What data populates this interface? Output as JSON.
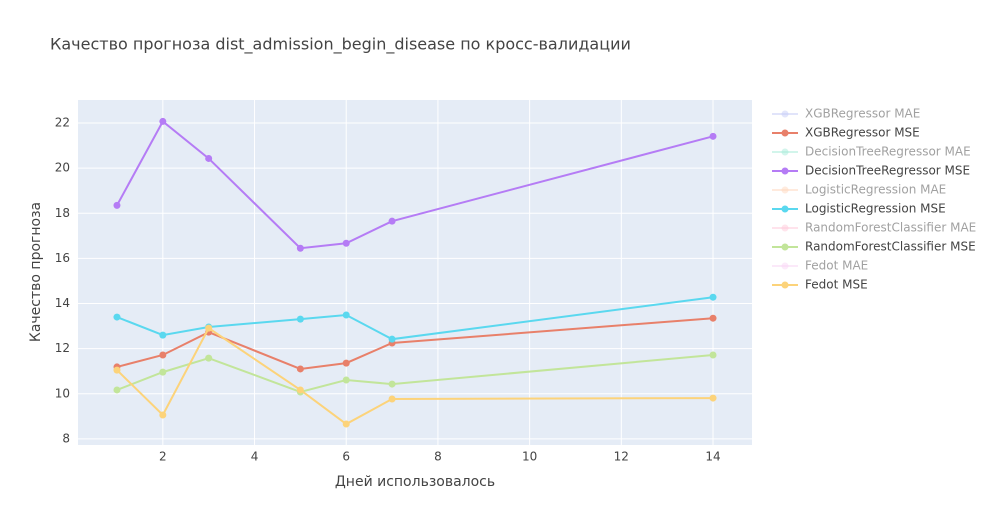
{
  "chart_data": {
    "type": "line",
    "title": "Качество прогноза dist_admission_begin_disease по кросс-валидации",
    "x_label": "Дней использовалось",
    "y_label": "Качество прогноза",
    "x": [
      1,
      2,
      3,
      5,
      6,
      7,
      14
    ],
    "xlim": [
      0.15,
      14.85
    ],
    "xticks": [
      2,
      4,
      6,
      8,
      10,
      12,
      14
    ],
    "ylim": [
      7.73,
      23.02
    ],
    "yticks": [
      8,
      10,
      12,
      14,
      16,
      18,
      20,
      22
    ],
    "grid": true,
    "legend": "right",
    "series": [
      {
        "name": "XGBRegressor MAE",
        "color": "#c5cbf7",
        "legendonly": true,
        "values": [
          null,
          null,
          null,
          null,
          null,
          null,
          null
        ]
      },
      {
        "name": "XGBRegressor MSE",
        "color": "#e8806a",
        "values": [
          11.19,
          11.72,
          12.73,
          11.1,
          11.36,
          12.25,
          13.35
        ]
      },
      {
        "name": "DecisionTreeRegressor MAE",
        "color": "#a6ecd9",
        "legendonly": true,
        "values": [
          null,
          null,
          null,
          null,
          null,
          null,
          null
        ]
      },
      {
        "name": "DecisionTreeRegressor MSE",
        "color": "#b57cf5",
        "values": [
          18.35,
          22.07,
          20.43,
          16.45,
          16.67,
          17.65,
          21.41
        ]
      },
      {
        "name": "LogisticRegression MAE",
        "color": "#ffd7bd",
        "legendonly": true,
        "values": [
          null,
          null,
          null,
          null,
          null,
          null,
          null
        ]
      },
      {
        "name": "LogisticRegression MSE",
        "color": "#5ad8ef",
        "values": [
          13.4,
          12.6,
          12.96,
          13.31,
          13.49,
          12.42,
          14.28
        ]
      },
      {
        "name": "RandomForestClassifier MAE",
        "color": "#ffc9da",
        "legendonly": true,
        "values": [
          null,
          null,
          null,
          null,
          null,
          null,
          null
        ]
      },
      {
        "name": "RandomForestClassifier MSE",
        "color": "#c2e59a",
        "values": [
          10.17,
          10.96,
          11.58,
          10.08,
          10.61,
          10.43,
          11.72
        ]
      },
      {
        "name": "Fedot MAE",
        "color": "#f9d5f5",
        "legendonly": true,
        "values": [
          null,
          null,
          null,
          null,
          null,
          null,
          null
        ]
      },
      {
        "name": "Fedot MSE",
        "color": "#fcd37a",
        "values": [
          11.05,
          9.06,
          12.91,
          10.17,
          8.66,
          9.77,
          9.81
        ]
      }
    ]
  }
}
